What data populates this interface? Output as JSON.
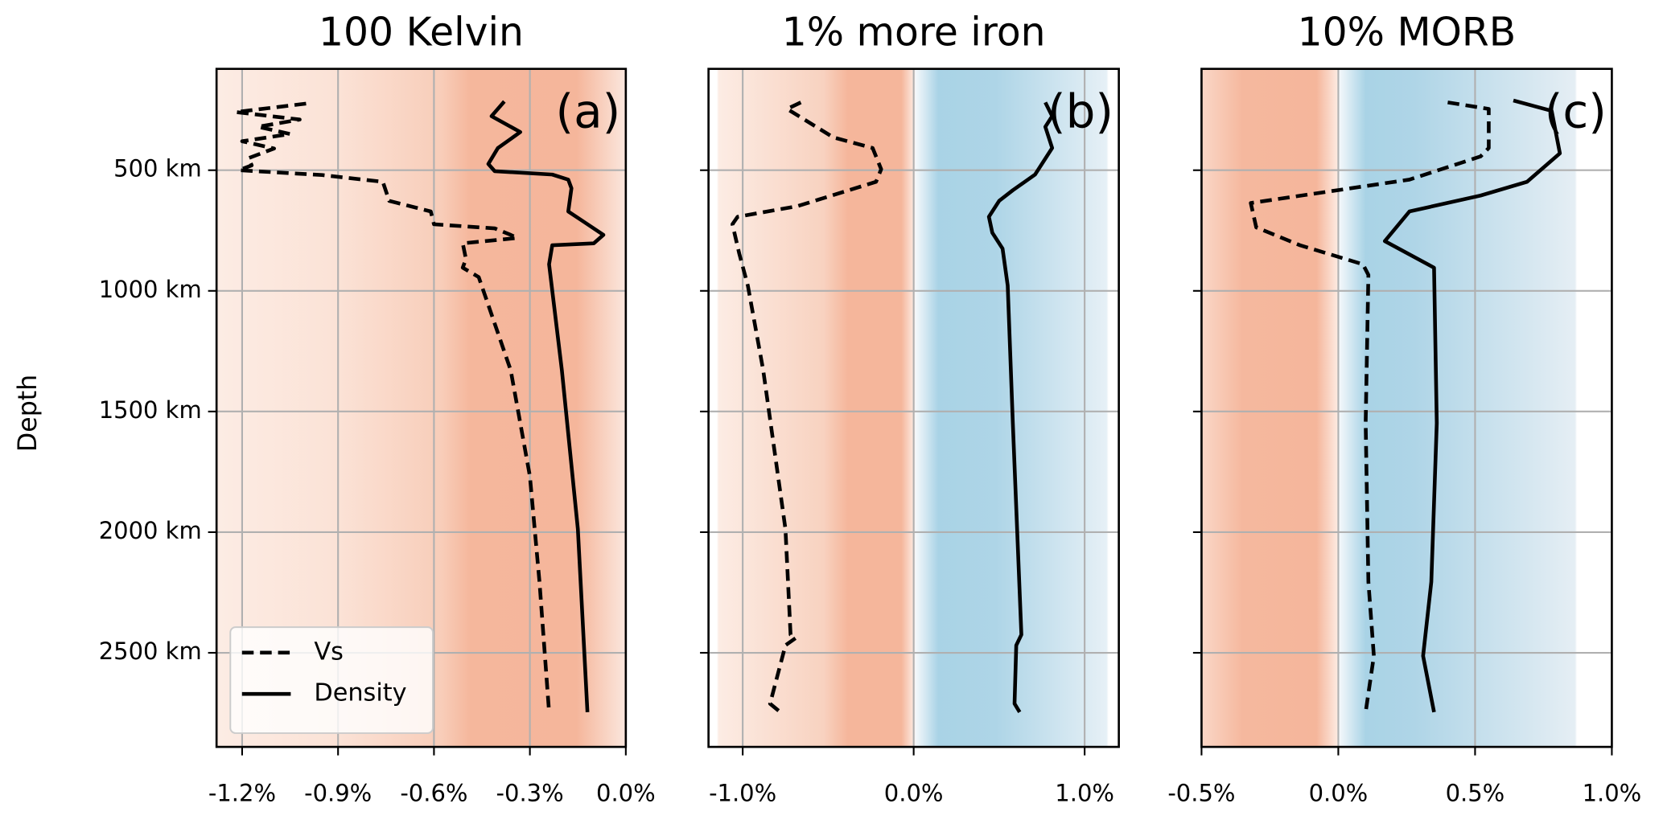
{
  "chart_data": [
    {
      "type": "line",
      "title": "100 Kelvin",
      "annotation": "(a)",
      "ylabel": "Depth",
      "xlim": [
        -1.28,
        0.0
      ],
      "xticks": [
        {
          "value": -1.2,
          "label": "-1.2%"
        },
        {
          "value": -0.9,
          "label": "-0.9%"
        },
        {
          "value": -0.6,
          "label": "-0.6%"
        },
        {
          "value": -0.3,
          "label": "-0.3%"
        },
        {
          "value": 0.0,
          "label": "0.0%"
        }
      ],
      "ylim": [
        80,
        2890
      ],
      "y_inverted": true,
      "yticks": [
        {
          "value": 500,
          "label": "500 km"
        },
        {
          "value": 1000,
          "label": "1000 km"
        },
        {
          "value": 1500,
          "label": "1500 km"
        },
        {
          "value": 2000,
          "label": "2000 km"
        },
        {
          "value": 2500,
          "label": "2500 km"
        }
      ],
      "grid": true,
      "legend": "lower left",
      "series": [
        {
          "name": "Vs",
          "color": "#000000",
          "dash": "dashed",
          "depths": [
            224,
            259,
            290,
            320,
            350,
            380,
            410,
            450,
            480,
            500,
            520,
            548,
            627,
            671,
            724,
            741,
            768,
            781,
            803,
            868,
            904,
            943,
            1329,
            1768,
            2206,
            2746
          ],
          "values": [
            -1.0,
            -1.22,
            -1.02,
            -1.15,
            -1.05,
            -1.2,
            -1.1,
            -1.18,
            -1.17,
            -1.21,
            -0.95,
            -0.76,
            -0.74,
            -0.61,
            -0.6,
            -0.41,
            -0.36,
            -0.34,
            -0.51,
            -0.5,
            -0.51,
            -0.46,
            -0.36,
            -0.3,
            -0.27,
            -0.24
          ]
        },
        {
          "name": "Density",
          "color": "#000000",
          "dash": "solid",
          "depths": [
            215,
            276,
            342,
            408,
            474,
            504,
            518,
            539,
            575,
            671,
            715,
            768,
            803,
            811,
            890,
            1329,
            1987,
            2746
          ],
          "values": [
            -0.38,
            -0.42,
            -0.33,
            -0.4,
            -0.43,
            -0.41,
            -0.23,
            -0.18,
            -0.17,
            -0.18,
            -0.13,
            -0.07,
            -0.1,
            -0.23,
            -0.24,
            -0.2,
            -0.15,
            -0.12
          ]
        }
      ]
    },
    {
      "type": "line",
      "title": "1% more iron",
      "annotation": "(b)",
      "xlim": [
        -1.2,
        1.2
      ],
      "xticks": [
        {
          "value": -1.0,
          "label": "-1.0%"
        },
        {
          "value": 0.0,
          "label": "0.0%"
        },
        {
          "value": 1.0,
          "label": "1.0%"
        }
      ],
      "ylim": [
        80,
        2890
      ],
      "y_inverted": true,
      "grid": true,
      "series": [
        {
          "color": "#000000",
          "dash": "dashed",
          "depths": [
            219,
            246,
            364,
            408,
            496,
            548,
            649,
            693,
            724,
            846,
            978,
            1329,
            1987,
            2425,
            2439,
            2469,
            2711,
            2746
          ],
          "values": [
            -0.66,
            -0.74,
            -0.47,
            -0.24,
            -0.19,
            -0.22,
            -0.68,
            -1.03,
            -1.06,
            -1.02,
            -0.97,
            -0.88,
            -0.75,
            -0.72,
            -0.69,
            -0.75,
            -0.84,
            -0.78
          ]
        },
        {
          "color": "#000000",
          "dash": "solid",
          "depths": [
            219,
            276,
            320,
            408,
            518,
            583,
            627,
            693,
            759,
            825,
            978,
            1548,
            2425,
            2469,
            2711,
            2746
          ],
          "values": [
            0.77,
            0.81,
            0.77,
            0.81,
            0.71,
            0.58,
            0.5,
            0.44,
            0.46,
            0.52,
            0.55,
            0.58,
            0.63,
            0.6,
            0.59,
            0.62
          ]
        }
      ]
    },
    {
      "type": "line",
      "title": "10% MORB",
      "annotation": "(c)",
      "xlim": [
        -0.5,
        1.0
      ],
      "xticks": [
        {
          "value": -0.5,
          "label": "-0.5%"
        },
        {
          "value": 0.0,
          "label": "0.0%"
        },
        {
          "value": 0.5,
          "label": "0.5%"
        },
        {
          "value": 1.0,
          "label": "1.0%"
        }
      ],
      "ylim": [
        80,
        2890
      ],
      "y_inverted": true,
      "grid": true,
      "series": [
        {
          "color": "#000000",
          "dash": "dashed",
          "depths": [
            219,
            246,
            408,
            443,
            539,
            636,
            737,
            811,
            890,
            934,
            1548,
            2206,
            2513,
            2746
          ],
          "values": [
            0.4,
            0.55,
            0.55,
            0.52,
            0.26,
            -0.32,
            -0.3,
            -0.14,
            0.09,
            0.11,
            0.1,
            0.11,
            0.13,
            0.1
          ]
        },
        {
          "color": "#000000",
          "dash": "solid",
          "depths": [
            211,
            254,
            430,
            548,
            605,
            671,
            794,
            904,
            1548,
            2206,
            2513,
            2746
          ],
          "values": [
            0.64,
            0.78,
            0.81,
            0.69,
            0.52,
            0.26,
            0.17,
            0.35,
            0.36,
            0.34,
            0.31,
            0.35
          ]
        }
      ]
    }
  ]
}
